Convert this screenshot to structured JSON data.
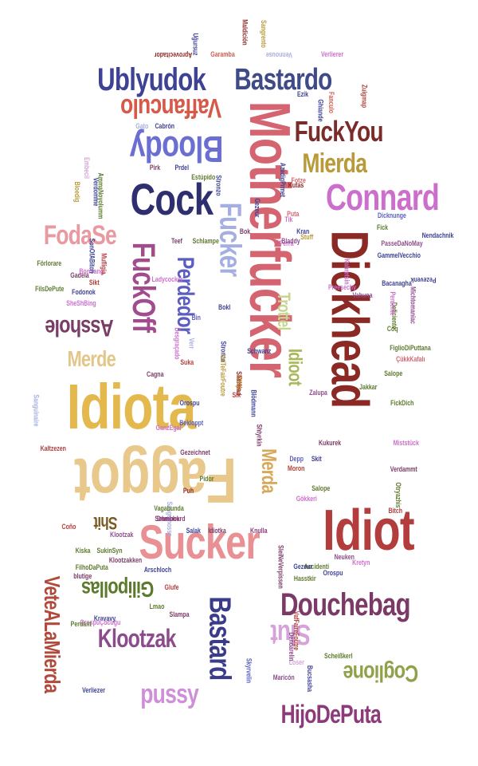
{
  "word_cloud": {
    "words": [
      {
        "text": "Motherfucker",
        "color": "#d4646f",
        "rotation": "vertical"
      },
      {
        "text": "Dickhead",
        "color": "#8b2a25",
        "rotation": "vertical"
      },
      {
        "text": "Idiota",
        "color": "#e3b94e",
        "rotation": "horizontal"
      },
      {
        "text": "Faggot",
        "color": "#e8c98b",
        "rotation": "upside-down"
      },
      {
        "text": "Sucker",
        "color": "#e89093",
        "rotation": "horizontal"
      },
      {
        "text": "Idiot",
        "color": "#b23d3c",
        "rotation": "horizontal"
      },
      {
        "text": "Douchebag",
        "color": "#7a3966",
        "rotation": "horizontal"
      },
      {
        "text": "Bastard",
        "color": "#3a3c8a",
        "rotation": "vertical"
      },
      {
        "text": "Fucker",
        "color": "#a5aee0",
        "rotation": "vertical"
      },
      {
        "text": "Connard",
        "color": "#cc6fcc",
        "rotation": "horizontal"
      },
      {
        "text": "Cock",
        "color": "#2f2f70",
        "rotation": "horizontal"
      },
      {
        "text": "Bloody",
        "color": "#6b6fd1",
        "rotation": "upside-down"
      },
      {
        "text": "Vaffanculo",
        "color": "#d65a4a",
        "rotation": "upside-down"
      },
      {
        "text": "Ublyudok",
        "color": "#3d4294",
        "rotation": "horizontal"
      },
      {
        "text": "Bastardo",
        "color": "#3f4a86",
        "rotation": "horizontal"
      },
      {
        "text": "FuckYou",
        "color": "#7a2c2b",
        "rotation": "horizontal"
      },
      {
        "text": "Mierda",
        "color": "#b89a3a",
        "rotation": "horizontal"
      },
      {
        "text": "FodaSe",
        "color": "#e89aa0",
        "rotation": "horizontal"
      },
      {
        "text": "FuckOff",
        "color": "#a04c8d",
        "rotation": "vertical"
      },
      {
        "text": "Perdedor",
        "color": "#5b5ec0",
        "rotation": "vertical"
      },
      {
        "text": "Asshole",
        "color": "#7a3d66",
        "rotation": "upside-down"
      },
      {
        "text": "Merde",
        "color": "#e3c78a",
        "rotation": "horizontal"
      },
      {
        "text": "Trottel",
        "color": "#c6d48c",
        "rotation": "vertical"
      },
      {
        "text": "Idioot",
        "color": "#a8b85a",
        "rotation": "vertical"
      },
      {
        "text": "Merda",
        "color": "#d8a85a",
        "rotation": "vertical"
      },
      {
        "text": "Shit",
        "color": "#7a5a22",
        "rotation": "upside-down"
      },
      {
        "text": "VeteALaMierda",
        "color": "#b24a3c",
        "rotation": "vertical"
      },
      {
        "text": "Gilipollas",
        "color": "#5c7a2c",
        "rotation": "upside-down"
      },
      {
        "text": "Klootzak",
        "color": "#8c4b8c",
        "rotation": "horizontal"
      },
      {
        "text": "Slut",
        "color": "#d5a3d8",
        "rotation": "upside-down"
      },
      {
        "text": "Coglione",
        "color": "#8fa24a",
        "rotation": "upside-down"
      },
      {
        "text": "pussy",
        "color": "#cf8fd8",
        "rotation": "horizontal"
      },
      {
        "text": "HijoDePuta",
        "color": "#8c3a7a",
        "rotation": "horizontal"
      },
      {
        "text": "Aprovecitador",
        "color": "#8b2a25",
        "rotation": "upside-down"
      },
      {
        "text": "Garamba",
        "color": "#d65a4a",
        "rotation": "horizontal"
      },
      {
        "text": "Vennouse",
        "color": "#a5aee0",
        "rotation": "upside-down"
      },
      {
        "text": "Verlierer",
        "color": "#cc6fcc",
        "rotation": "horizontal"
      },
      {
        "text": "Uğursuz",
        "color": "#3d4294",
        "rotation": "vertical"
      },
      {
        "text": "Maldición",
        "color": "#8b2a25",
        "rotation": "vertical"
      },
      {
        "text": "Sangrento",
        "color": "#b89a3a",
        "rotation": "vertical"
      },
      {
        "text": "Estúpido",
        "color": "#5c7a2c",
        "rotation": "horizontal"
      },
      {
        "text": "Nendachnik",
        "color": "#3d4294",
        "rotation": "horizontal"
      },
      {
        "text": "Pezevenk",
        "color": "#3d4294",
        "rotation": "upside-down"
      },
      {
        "text": "Förlorare",
        "color": "#5c7a2c",
        "rotation": "horizontal"
      },
      {
        "text": "Schlampe",
        "color": "#5c7a2c",
        "rotation": "horizontal"
      },
      {
        "text": "Teef",
        "color": "#7a3d66",
        "rotation": "horizontal"
      },
      {
        "text": "Perra",
        "color": "#cc6fcc",
        "rotation": "horizontal"
      },
      {
        "text": "Bin",
        "color": "#5b5ec0",
        "rotation": "horizontal"
      },
      {
        "text": "Suka",
        "color": "#b23d3c",
        "rotation": "horizontal"
      },
      {
        "text": "Cagna",
        "color": "#7a3d66",
        "rotation": "horizontal"
      },
      {
        "text": "Sik",
        "color": "#b23d3c",
        "rotation": "horizontal"
      },
      {
        "text": "Klootzak",
        "color": "#8c4b8c",
        "rotation": "horizontal"
      },
      {
        "text": "Knulla",
        "color": "#8c3a7a",
        "rotation": "horizontal"
      },
      {
        "text": "Salak",
        "color": "#3d4294",
        "rotation": "horizontal"
      },
      {
        "text": "Idiotka",
        "color": "#7a3966",
        "rotation": "horizontal"
      },
      {
        "text": "Maricón",
        "color": "#8c4b8c",
        "rotation": "horizontal"
      },
      {
        "text": "Loser",
        "color": "#d5a3d8",
        "rotation": "horizontal"
      },
      {
        "text": "Scheißkerl",
        "color": "#5c7a2c",
        "rotation": "horizontal"
      },
      {
        "text": "Verliezer",
        "color": "#3d4294",
        "rotation": "horizontal"
      },
      {
        "text": "Slampa",
        "color": "#7a3966",
        "rotation": "horizontal"
      },
      {
        "text": "Kretyn",
        "color": "#cc6fcc",
        "rotation": "horizontal"
      },
      {
        "text": "Orospu",
        "color": "#3d4294",
        "rotation": "horizontal"
      },
      {
        "text": "Accidenti",
        "color": "#5c7a2c",
        "rotation": "horizontal"
      },
      {
        "text": "Neuken",
        "color": "#8c4b8c",
        "rotation": "horizontal"
      },
      {
        "text": "Verdammt",
        "color": "#7a3d66",
        "rotation": "horizontal"
      },
      {
        "text": "Bitch",
        "color": "#b23d3c",
        "rotation": "horizontal"
      },
      {
        "text": "Coq",
        "color": "#5c7a2c",
        "rotation": "horizontal"
      },
      {
        "text": "Depp",
        "color": "#5b5ec0",
        "rotation": "horizontal"
      },
      {
        "text": "Moron",
        "color": "#b23d3c",
        "rotation": "horizontal"
      },
      {
        "text": "Skit",
        "color": "#3d4294",
        "rotation": "horizontal"
      },
      {
        "text": "Salope",
        "color": "#5c7a2c",
        "rotation": "horizontal"
      },
      {
        "text": "Cabrón",
        "color": "#3d4294",
        "rotation": "horizontal"
      },
      {
        "text": "Gato",
        "color": "#a5aee0",
        "rotation": "horizontal"
      },
      {
        "text": "Stronzo",
        "color": "#3d4294",
        "rotation": "vertical"
      },
      {
        "text": "Fick",
        "color": "#5c7a2c",
        "rotation": "horizontal"
      },
      {
        "text": "Puta",
        "color": "#d4646f",
        "rotation": "horizontal"
      },
      {
        "text": "Bok",
        "color": "#7a3d66",
        "rotation": "horizontal"
      },
      {
        "text": "Pirk",
        "color": "#7a3d66",
        "rotation": "horizontal"
      },
      {
        "text": "Prdel",
        "color": "#3d4294",
        "rotation": "horizontal"
      },
      {
        "text": "Fotze",
        "color": "#d4646f",
        "rotation": "horizontal"
      },
      {
        "text": "Tik",
        "color": "#cc6fcc",
        "rotation": "horizontal"
      },
      {
        "text": "Kran",
        "color": "#3d4294",
        "rotation": "horizontal"
      },
      {
        "text": "Stuff",
        "color": "#b89a3a",
        "rotation": "horizontal"
      },
      {
        "text": "Bladdy",
        "color": "#8c4b8c",
        "rotation": "horizontal"
      },
      {
        "text": "Kutas",
        "color": "#8b2a25",
        "rotation": "horizontal"
      },
      {
        "text": "Ezik",
        "color": "#3d4294",
        "rotation": "horizontal"
      },
      {
        "text": "Fanculo",
        "color": "#d65a4a",
        "rotation": "vertical"
      },
      {
        "text": "Ghiande",
        "color": "#3d4294",
        "rotation": "vertical"
      },
      {
        "text": "Zuigmap",
        "color": "#b23d3c",
        "rotation": "vertical"
      },
      {
        "text": "Gezeichnet",
        "color": "#7a3d66",
        "rotation": "horizontal"
      },
      {
        "text": "Pidor",
        "color": "#5c7a2c",
        "rotation": "horizontal"
      },
      {
        "text": "GanzEgal",
        "color": "#cc6fcc",
        "rotation": "horizontal"
      },
      {
        "text": "Bekloppt",
        "color": "#5b5ec0",
        "rotation": "horizontal"
      },
      {
        "text": "Puh",
        "color": "#8b2a25",
        "rotation": "horizontal"
      },
      {
        "text": "Schmock",
        "color": "#7a3966",
        "rotation": "horizontal"
      },
      {
        "text": "Kiska",
        "color": "#5c7a2c",
        "rotation": "horizontal"
      },
      {
        "text": "blutige",
        "color": "#7a3966",
        "rotation": "horizontal"
      },
      {
        "text": "SukinSyn",
        "color": "#5c7a2c",
        "rotation": "horizontal"
      },
      {
        "text": "Kravavy",
        "color": "#3d4294",
        "rotation": "horizontal"
      },
      {
        "text": "OrospuÇocuğu",
        "color": "#cc6fcc",
        "rotation": "horizontal"
      },
      {
        "text": "FilhoDaPuta",
        "color": "#5c7a2c",
        "rotation": "horizontal"
      },
      {
        "text": "Perdant",
        "color": "#5c7a2c",
        "rotation": "horizontal"
      },
      {
        "text": "Kaltzezen",
        "color": "#b23d3c",
        "rotation": "horizontal"
      },
      {
        "text": "Sanguinaire",
        "color": "#a5aee0",
        "rotation": "vertical"
      },
      {
        "text": "Sanguinosso",
        "color": "#a5aee0",
        "rotation": "vertical"
      },
      {
        "text": "Vagabunda",
        "color": "#5c7a2c",
        "rotation": "horizontal"
      },
      {
        "text": "Dumbhurd",
        "color": "#8c3a7a",
        "rotation": "horizontal"
      },
      {
        "text": "Coño",
        "color": "#b23d3c",
        "rotation": "horizontal"
      },
      {
        "text": "Lmao",
        "color": "#5c7a2c",
        "rotation": "horizontal"
      },
      {
        "text": "Klootzakken",
        "color": "#7a3d66",
        "rotation": "horizontal"
      },
      {
        "text": "Arschloch",
        "color": "#3d4294",
        "rotation": "horizontal"
      },
      {
        "text": "Hasstkir",
        "color": "#5c7a2c",
        "rotation": "horizontal"
      },
      {
        "text": "Glufe",
        "color": "#b23d3c",
        "rotation": "horizontal"
      },
      {
        "text": "Gezeur",
        "color": "#3d4294",
        "rotation": "horizontal"
      },
      {
        "text": "Orospu",
        "color": "#3d4294",
        "rotation": "horizontal"
      },
      {
        "text": "Kukurek",
        "color": "#7a3966",
        "rotation": "horizontal"
      },
      {
        "text": "Zalupa",
        "color": "#8c4b8c",
        "rotation": "horizontal"
      },
      {
        "text": "Jakkar",
        "color": "#5c7a2c",
        "rotation": "horizontal"
      },
      {
        "text": "FickDich",
        "color": "#5c7a2c",
        "rotation": "horizontal"
      },
      {
        "text": "Miststück",
        "color": "#cc6fcc",
        "rotation": "horizontal"
      },
      {
        "text": "Gökkeri",
        "color": "#cc6fcc",
        "rotation": "horizontal"
      },
      {
        "text": "Salope",
        "color": "#5c7a2c",
        "rotation": "horizontal"
      },
      {
        "text": "FiglioDiPuttana",
        "color": "#5c7a2c",
        "rotation": "horizontal"
      },
      {
        "text": "ÇükkKafalı",
        "color": "#d4646f",
        "rotation": "horizontal"
      },
      {
        "text": "Schwanz",
        "color": "#3d4294",
        "rotation": "horizontal"
      },
      {
        "text": "Dicknunge",
        "color": "#5b5ec0",
        "rotation": "horizontal"
      },
      {
        "text": "Ladycocker",
        "color": "#cc6fcc",
        "rotation": "horizontal"
      },
      {
        "text": "Bacanagha",
        "color": "#3d4294",
        "rotation": "horizontal"
      },
      {
        "text": "GammelVecchio",
        "color": "#3d4294",
        "rotation": "horizontal"
      },
      {
        "text": "PasseDaNoMay",
        "color": "#8c4b8c",
        "rotation": "horizontal"
      },
      {
        "text": "Preesechy",
        "color": "#cc6fcc",
        "rotation": "horizontal"
      },
      {
        "text": "Vahuna",
        "color": "#8c4b8c",
        "rotation": "horizontal"
      },
      {
        "text": "Bokl",
        "color": "#3d4294",
        "rotation": "horizontal"
      },
      {
        "text": "Sikt",
        "color": "#b23d3c",
        "rotation": "horizontal"
      },
      {
        "text": "SheShBing",
        "color": "#cc6fcc",
        "rotation": "horizontal"
      },
      {
        "text": "Fodonok",
        "color": "#3d4294",
        "rotation": "horizontal"
      },
      {
        "text": "Gadela",
        "color": "#7a3d66",
        "rotation": "horizontal"
      },
      {
        "text": "BonSang",
        "color": "#cc6fcc",
        "rotation": "horizontal"
      },
      {
        "text": "FilsDePute",
        "color": "#5c7a2c",
        "rotation": "horizontal"
      },
      {
        "text": "Bloedig",
        "color": "#b89a3a",
        "rotation": "vertical"
      },
      {
        "text": "Verdomme",
        "color": "#3d4294",
        "rotation": "vertical"
      },
      {
        "text": "Embecil",
        "color": "#d5a3d8",
        "rotation": "vertical"
      },
      {
        "text": "AmmaNoyolumm",
        "color": "#5c7a2c",
        "rotation": "vertical"
      },
      {
        "text": "SonOfABitch",
        "color": "#3d4294",
        "rotation": "vertical"
      },
      {
        "text": "Mufligia",
        "color": "#b23d3c",
        "rotation": "vertical"
      },
      {
        "text": "SleiNeVerpissen",
        "color": "#7a3966",
        "rotation": "vertical"
      },
      {
        "text": "Dendärelin",
        "color": "#8c4b8c",
        "rotation": "vertical"
      },
      {
        "text": "VafFaireFoutre",
        "color": "#b23d3c",
        "rotation": "vertical"
      },
      {
        "text": "Kahretsin",
        "color": "#cc6fcc",
        "rotation": "vertical"
      },
      {
        "text": "Otryazhis",
        "color": "#5c7a2c",
        "rotation": "vertical"
      },
      {
        "text": "Deficiente",
        "color": "#5c7a2c",
        "rotation": "vertical"
      },
      {
        "text": "Michtomaniac",
        "color": "#8c4b8c",
        "rotation": "vertical"
      },
      {
        "text": "Perdente",
        "color": "#cc6fcc",
        "rotation": "vertical"
      },
      {
        "text": "Bucsasha",
        "color": "#3d4294",
        "rotation": "vertical"
      },
      {
        "text": "Desgraçado",
        "color": "#cc6fcc",
        "rotation": "vertical"
      },
      {
        "text": "Blödmann",
        "color": "#3d4294",
        "rotation": "vertical"
      },
      {
        "text": "Shtyrkin",
        "color": "#7a3966",
        "rotation": "vertical"
      },
      {
        "text": "Gezeur",
        "color": "#3d4294",
        "rotation": "vertical"
      },
      {
        "text": "Verr",
        "color": "#a5aee0",
        "rotation": "vertical"
      },
      {
        "text": "Stronzo",
        "color": "#3d4294",
        "rotation": "vertical"
      },
      {
        "text": "VaiTeFairFoutre",
        "color": "#b89a3a",
        "rotation": "vertical"
      },
      {
        "text": "AzadigPrmet",
        "color": "#3d4294",
        "rotation": "vertical"
      },
      {
        "text": "Skyrvelin",
        "color": "#5b5ec0",
        "rotation": "vertical"
      },
      {
        "text": "ShitHead",
        "color": "#8b2a25",
        "rotation": "vertical"
      },
      {
        "text": "Cretin",
        "color": "#b23d3c",
        "rotation": "vertical"
      },
      {
        "text": "Chtyr",
        "color": "#b89a3a",
        "rotation": "vertical"
      }
    ]
  }
}
